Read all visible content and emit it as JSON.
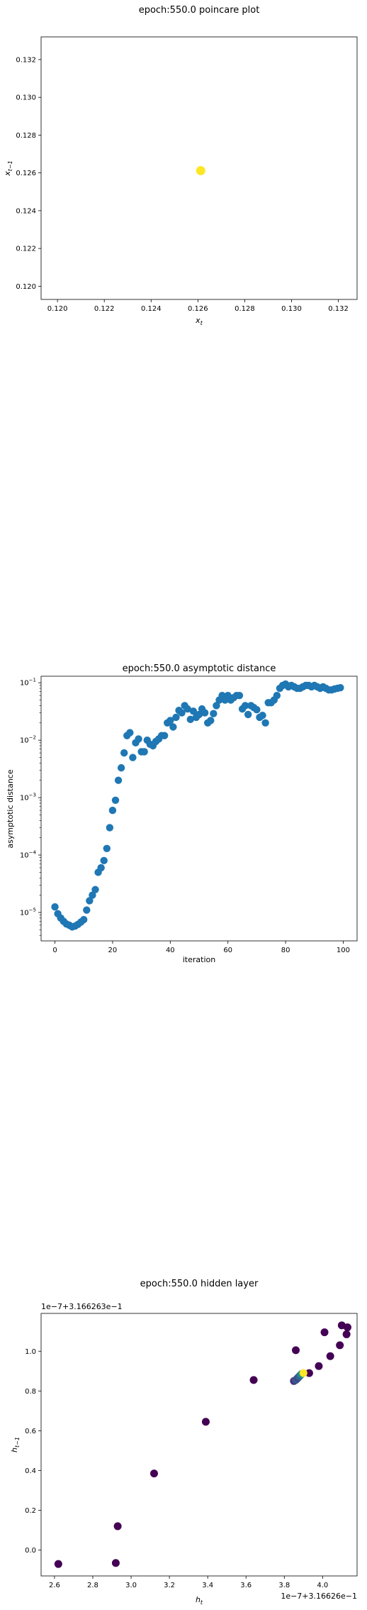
{
  "chart_data": [
    {
      "type": "scatter",
      "title": "epoch:550.0 poincare plot",
      "xlabel": "x_t",
      "ylabel": "x_{t-1}",
      "xlim": [
        0.1193,
        0.1328
      ],
      "ylim": [
        0.1193,
        0.1332
      ],
      "xticks": [
        0.12,
        0.122,
        0.124,
        0.126,
        0.128,
        0.13,
        0.132
      ],
      "yticks": [
        0.12,
        0.122,
        0.124,
        0.126,
        0.128,
        0.13,
        0.132
      ],
      "xtick_labels": [
        "0.120",
        "0.122",
        "0.124",
        "0.126",
        "0.128",
        "0.130",
        "0.132"
      ],
      "ytick_labels": [
        "0.120",
        "0.122",
        "0.124",
        "0.126",
        "0.128",
        "0.130",
        "0.132"
      ],
      "points": [
        {
          "x": 0.12612,
          "y": 0.12612,
          "color": "#fde725"
        }
      ],
      "grid": false
    },
    {
      "type": "scatter",
      "title": "epoch:550.0 asymptotic distance",
      "xlabel": "iteration",
      "ylabel": "asymptotic distance",
      "yscale": "log",
      "xlim": [
        -4.8,
        104.8
      ],
      "ylim": [
        3.2e-06,
        0.13
      ],
      "xticks": [
        0,
        20,
        40,
        60,
        80,
        100
      ],
      "xtick_labels": [
        "0",
        "20",
        "40",
        "60",
        "80",
        "100"
      ],
      "yticks": [
        1e-05,
        0.0001,
        0.001,
        0.01,
        0.1
      ],
      "ytick_labels": [
        "10^{-5}",
        "10^{-4}",
        "10^{-3}",
        "10^{-2}",
        "10^{-1}"
      ],
      "color": "#1f77b4",
      "values": [
        1.25e-05,
        9.5e-06,
        8e-06,
        7e-06,
        6.3e-06,
        6e-06,
        5.6e-06,
        5.8e-06,
        6.2e-06,
        6.8e-06,
        7.5e-06,
        1.1e-05,
        1.6e-05,
        2e-05,
        2.5e-05,
        5e-05,
        6e-05,
        8e-05,
        0.00013,
        0.0003,
        0.0006,
        0.0009,
        0.002,
        0.0033,
        0.006,
        0.012,
        0.0135,
        0.005,
        0.009,
        0.0105,
        0.0063,
        0.0063,
        0.01,
        0.0085,
        0.008,
        0.0095,
        0.0105,
        0.012,
        0.012,
        0.02,
        0.022,
        0.017,
        0.025,
        0.033,
        0.03,
        0.04,
        0.035,
        0.023,
        0.032,
        0.025,
        0.028,
        0.035,
        0.03,
        0.02,
        0.022,
        0.029,
        0.04,
        0.05,
        0.06,
        0.05,
        0.06,
        0.05,
        0.055,
        0.06,
        0.06,
        0.035,
        0.04,
        0.028,
        0.04,
        0.037,
        0.034,
        0.025,
        0.027,
        0.02,
        0.045,
        0.045,
        0.05,
        0.06,
        0.08,
        0.09,
        0.095,
        0.085,
        0.09,
        0.085,
        0.08,
        0.08,
        0.085,
        0.09,
        0.09,
        0.085,
        0.09,
        0.085,
        0.08,
        0.085,
        0.08,
        0.075,
        0.075,
        0.078,
        0.08,
        0.082
      ],
      "grid": false
    },
    {
      "type": "scatter",
      "title": "epoch:550.0 hidden layer",
      "xlabel": "h_t",
      "ylabel": "h_{t-1}",
      "x_offset_label": "1e−7+3.16626e−1",
      "y_offset_label": "1e−7+3.166263e−1",
      "xlim": [
        2.53,
        4.18
      ],
      "ylim": [
        -0.13,
        1.19
      ],
      "xticks": [
        2.6,
        2.8,
        3.0,
        3.2,
        3.4,
        3.6,
        3.8,
        4.0,
        4.2
      ],
      "xtick_labels": [
        "2.6",
        "2.8",
        "3.0",
        "3.2",
        "3.4",
        "3.6",
        "3.8",
        "4.0",
        "4.2"
      ],
      "yticks": [
        0.0,
        0.2,
        0.4,
        0.6,
        0.8,
        1.0
      ],
      "ytick_labels": [
        "0.0",
        "0.2",
        "0.4",
        "0.6",
        "0.8",
        "1.0"
      ],
      "points": [
        {
          "x": 2.62,
          "y": -0.07,
          "color": "#440154"
        },
        {
          "x": 2.92,
          "y": -0.065,
          "color": "#440154"
        },
        {
          "x": 2.93,
          "y": 0.12,
          "color": "#440154"
        },
        {
          "x": 3.12,
          "y": 0.385,
          "color": "#440154"
        },
        {
          "x": 3.39,
          "y": 0.645,
          "color": "#440154"
        },
        {
          "x": 3.64,
          "y": 0.855,
          "color": "#440154"
        },
        {
          "x": 3.86,
          "y": 1.005,
          "color": "#440154"
        },
        {
          "x": 4.01,
          "y": 1.095,
          "color": "#440154"
        },
        {
          "x": 4.1,
          "y": 1.13,
          "color": "#440154"
        },
        {
          "x": 4.13,
          "y": 1.12,
          "color": "#440154"
        },
        {
          "x": 4.125,
          "y": 1.085,
          "color": "#440154"
        },
        {
          "x": 4.09,
          "y": 1.03,
          "color": "#440154"
        },
        {
          "x": 4.04,
          "y": 0.975,
          "color": "#440154"
        },
        {
          "x": 3.98,
          "y": 0.925,
          "color": "#440154"
        },
        {
          "x": 3.93,
          "y": 0.89,
          "color": "#440154"
        },
        {
          "x": 3.85,
          "y": 0.85,
          "color": "#46337e"
        },
        {
          "x": 3.86,
          "y": 0.855,
          "color": "#3b528b"
        },
        {
          "x": 3.865,
          "y": 0.86,
          "color": "#365c8d"
        },
        {
          "x": 3.87,
          "y": 0.865,
          "color": "#414487"
        },
        {
          "x": 3.875,
          "y": 0.87,
          "color": "#3b528b"
        },
        {
          "x": 3.88,
          "y": 0.875,
          "color": "#31688e"
        },
        {
          "x": 3.885,
          "y": 0.88,
          "color": "#2c728e"
        },
        {
          "x": 3.89,
          "y": 0.885,
          "color": "#21918c"
        },
        {
          "x": 3.9,
          "y": 0.89,
          "color": "#fde725"
        }
      ],
      "grid": false
    }
  ]
}
